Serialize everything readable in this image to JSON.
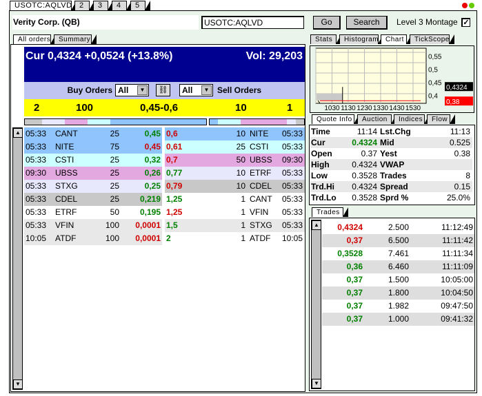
{
  "window_tabs": [
    "USOTC:AQLVD",
    "2",
    "3",
    "4",
    "5"
  ],
  "header": {
    "company": "Verity Corp. (QB)",
    "symbol_input": "USOTC:AQLVD",
    "go": "Go",
    "search": "Search",
    "montage_label": "Level 3 Montage",
    "montage_checked": true
  },
  "left_tabs": [
    "All orders",
    "Summary"
  ],
  "banner": {
    "cur": "Cur 0,4324 +0,0524 (+13.8%)",
    "vol": "Vol: 29,203"
  },
  "filters": {
    "buy_label": "Buy Orders",
    "buy_value": "All",
    "sell_value": "All",
    "sell_label": "Sell Orders",
    "link_icon": "chain-link-icon"
  },
  "summary": {
    "buy_count": "2",
    "buy_size": "100",
    "spread": "0,45-0,6",
    "sell_size": "10",
    "sell_count": "1"
  },
  "colors": {
    "blue": "#90c4fc",
    "cyan": "#ccffff",
    "pink": "#e4a8e0",
    "lavender": "#e8e8fc",
    "gray": "#c8c8c8",
    "white": "#ffffff",
    "light": "#e8e8e8",
    "up": "#008000",
    "down": "#d00000",
    "banner": "#000090",
    "yellow": "#ffff00"
  },
  "buy_orders": [
    {
      "time": "05:33",
      "mm": "CANT",
      "size": "25",
      "price": "0,45",
      "dir": "g",
      "bg": "blue"
    },
    {
      "time": "05:33",
      "mm": "NITE",
      "size": "75",
      "price": "0,45",
      "dir": "r",
      "bg": "blue"
    },
    {
      "time": "05:33",
      "mm": "CSTI",
      "size": "25",
      "price": "0,32",
      "dir": "g",
      "bg": "cyan"
    },
    {
      "time": "09:30",
      "mm": "UBSS",
      "size": "25",
      "price": "0,26",
      "dir": "g",
      "bg": "pink"
    },
    {
      "time": "05:33",
      "mm": "STXG",
      "size": "25",
      "price": "0,25",
      "dir": "g",
      "bg": "lavender"
    },
    {
      "time": "05:33",
      "mm": "CDEL",
      "size": "25",
      "price": "0,219",
      "dir": "g",
      "bg": "gray"
    },
    {
      "time": "05:33",
      "mm": "ETRF",
      "size": "50",
      "price": "0,195",
      "dir": "g",
      "bg": "white"
    },
    {
      "time": "05:33",
      "mm": "VFIN",
      "size": "100",
      "price": "0,0001",
      "dir": "r",
      "bg": "light"
    },
    {
      "time": "10:05",
      "mm": "ATDF",
      "size": "100",
      "price": "0,0001",
      "dir": "r",
      "bg": "light"
    }
  ],
  "sell_orders": [
    {
      "price": "0,6",
      "size": "10",
      "mm": "NITE",
      "time": "05:33",
      "dir": "r",
      "bg": "blue"
    },
    {
      "price": "0,61",
      "size": "25",
      "mm": "CSTI",
      "time": "05:33",
      "dir": "r",
      "bg": "cyan"
    },
    {
      "price": "0,7",
      "size": "50",
      "mm": "UBSS",
      "time": "09:30",
      "dir": "r",
      "bg": "pink"
    },
    {
      "price": "0,77",
      "size": "10",
      "mm": "ETRF",
      "time": "05:33",
      "dir": "g",
      "bg": "lavender"
    },
    {
      "price": "0,79",
      "size": "10",
      "mm": "CDEL",
      "time": "05:33",
      "dir": "r",
      "bg": "gray"
    },
    {
      "price": "1,25",
      "size": "1",
      "mm": "CANT",
      "time": "05:33",
      "dir": "g",
      "bg": "white"
    },
    {
      "price": "1,25",
      "size": "1",
      "mm": "VFIN",
      "time": "05:33",
      "dir": "r",
      "bg": "white"
    },
    {
      "price": "1,5",
      "size": "1",
      "mm": "STXG",
      "time": "05:33",
      "dir": "g",
      "bg": "light"
    },
    {
      "price": "2",
      "size": "1",
      "mm": "ATDF",
      "time": "10:05",
      "dir": "g",
      "bg": "white"
    }
  ],
  "right_tabs": [
    "Stats",
    "Histogram",
    "Chart",
    "TickScope"
  ],
  "chart_data": {
    "type": "line",
    "x_ticks": [
      "1030",
      "1130",
      "1230",
      "1330",
      "1430",
      "1530"
    ],
    "y_ticks": [
      "0,55",
      "0,5",
      "0,45",
      "0,4"
    ],
    "ylim": [
      0.37,
      0.58
    ],
    "cur_label": "0,4324",
    "prev_label": "0,38",
    "cur": 0.4324,
    "prev": 0.38,
    "grid": true
  },
  "quote_tabs": [
    "Quote Info",
    "Auction",
    "Indices",
    "Flow"
  ],
  "quote": [
    {
      "l": "Time",
      "v": "11:14",
      "l2": "Lst.Chg",
      "v2": "11:13"
    },
    {
      "l": "Cur",
      "v": "0.4324",
      "l2": "Mid",
      "v2": "0.525"
    },
    {
      "l": "Open",
      "v": "0.37",
      "l2": "Yest",
      "v2": "0.38"
    },
    {
      "l": "High",
      "v": "0.4324",
      "l2": "VWAP",
      "v2": ""
    },
    {
      "l": "Low",
      "v": "0.3528",
      "l2": "Trades",
      "v2": "8"
    },
    {
      "l": "Trd.Hi",
      "v": "0.4324",
      "l2": "Spread",
      "v2": "0.15"
    },
    {
      "l": "Trd.Lo",
      "v": "0.3528",
      "l2": "Sprd %",
      "v2": "25.0%"
    }
  ],
  "trades_tab": "Trades",
  "trades": [
    {
      "price": "0,4324",
      "size": "2.500",
      "time": "11:12:49",
      "dir": "r"
    },
    {
      "price": "0,37",
      "size": "6.500",
      "time": "11:11:42",
      "dir": "r"
    },
    {
      "price": "0,3528",
      "size": "7.461",
      "time": "11:11:34",
      "dir": "g"
    },
    {
      "price": "0,36",
      "size": "6.460",
      "time": "11:11:09",
      "dir": "g"
    },
    {
      "price": "0,37",
      "size": "1.500",
      "time": "10:05:00",
      "dir": "g"
    },
    {
      "price": "0,37",
      "size": "1.800",
      "time": "10:04:50",
      "dir": "g"
    },
    {
      "price": "0,37",
      "size": "1.982",
      "time": "09:47:50",
      "dir": "g"
    },
    {
      "price": "0,37",
      "size": "1.000",
      "time": "09:41:32",
      "dir": "g"
    }
  ]
}
